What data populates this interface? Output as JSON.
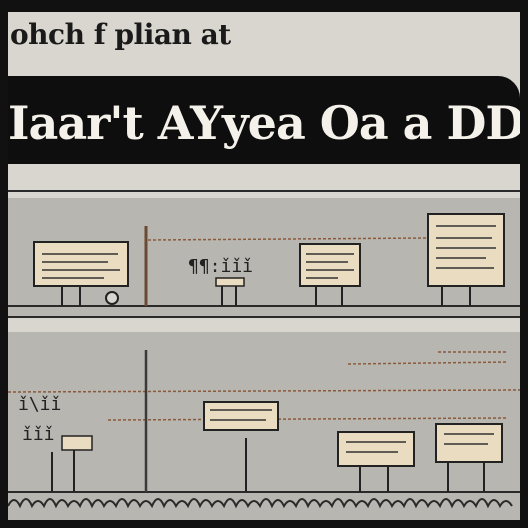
{
  "top_caption": "ohch f plian at",
  "title": "Iaar't AYyea Oa a DD",
  "panel_top_glyph": "¶¶:ǐǐǐ",
  "panel_bottom_glyph_a": "ǐ\\ǐǐ",
  "panel_bottom_glyph_b": "ǐǐǐ"
}
